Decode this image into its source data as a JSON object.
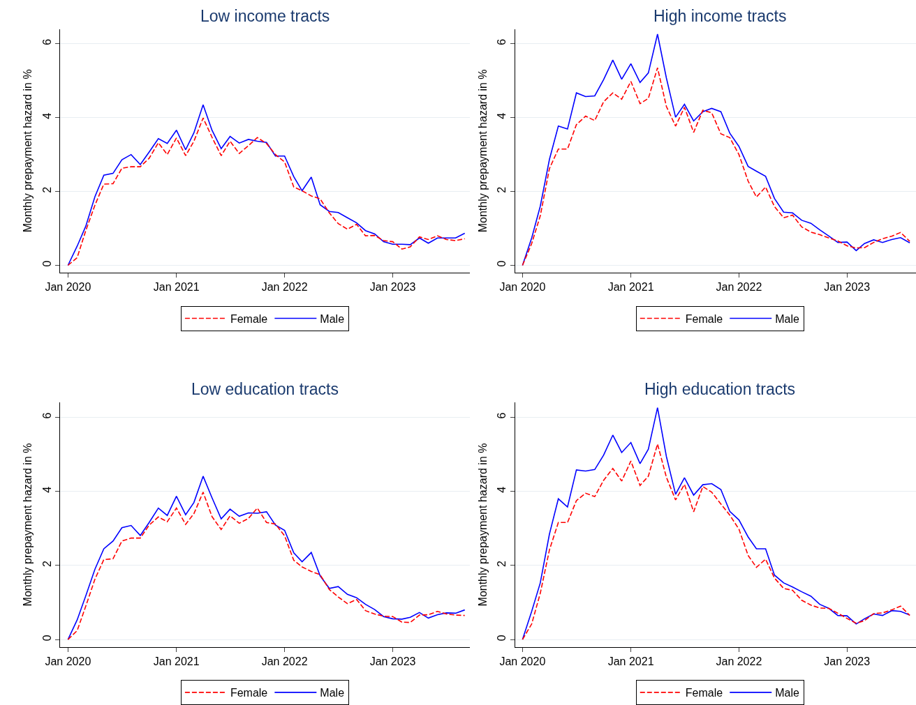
{
  "chart_data": [
    {
      "type": "line",
      "title": "Low income tracts",
      "ylabel": "Monthly prepayment hazard in %",
      "x": [
        "2020-01",
        "2020-02",
        "2020-03",
        "2020-04",
        "2020-05",
        "2020-06",
        "2020-07",
        "2020-08",
        "2020-09",
        "2020-10",
        "2020-11",
        "2020-12",
        "2021-01",
        "2021-02",
        "2021-03",
        "2021-04",
        "2021-05",
        "2021-06",
        "2021-07",
        "2021-08",
        "2021-09",
        "2021-10",
        "2021-11",
        "2021-12",
        "2022-01",
        "2022-02",
        "2022-03",
        "2022-04",
        "2022-05",
        "2022-06",
        "2022-07",
        "2022-08",
        "2022-09",
        "2022-10",
        "2022-11",
        "2022-12",
        "2023-01",
        "2023-02",
        "2023-03",
        "2023-04",
        "2023-05",
        "2023-06",
        "2023-07",
        "2023-08",
        "2023-09"
      ],
      "series": [
        {
          "name": "Female",
          "color": "#ff0000",
          "line_style": "dashed",
          "values": [
            0,
            0.21,
            0.94,
            1.63,
            2.2,
            2.21,
            2.63,
            2.67,
            2.67,
            2.9,
            3.32,
            3.0,
            3.45,
            2.97,
            3.36,
            3.99,
            3.47,
            2.97,
            3.36,
            3.03,
            3.24,
            3.46,
            3.3,
            3.0,
            2.8,
            2.12,
            2.02,
            1.88,
            1.8,
            1.42,
            1.13,
            0.98,
            1.11,
            0.8,
            0.81,
            0.67,
            0.64,
            0.44,
            0.5,
            0.77,
            0.7,
            0.8,
            0.7,
            0.67,
            0.72
          ]
        },
        {
          "name": "Male",
          "color": "#0000ff",
          "line_style": "solid",
          "values": [
            0,
            0.52,
            1.06,
            1.86,
            2.44,
            2.49,
            2.86,
            3.0,
            2.73,
            3.07,
            3.43,
            3.3,
            3.66,
            3.13,
            3.59,
            4.35,
            3.66,
            3.16,
            3.49,
            3.31,
            3.41,
            3.36,
            3.33,
            2.96,
            2.96,
            2.4,
            2.02,
            2.39,
            1.64,
            1.46,
            1.43,
            1.29,
            1.15,
            0.94,
            0.85,
            0.64,
            0.57,
            0.57,
            0.56,
            0.74,
            0.6,
            0.74,
            0.74,
            0.74,
            0.87
          ]
        }
      ],
      "xlim": [
        "2019-12-05",
        "2023-09-18"
      ],
      "ylim": [
        -0.2,
        6.4
      ],
      "xticks": [
        {
          "value": "2020-01",
          "label": "Jan 2020"
        },
        {
          "value": "2021-01",
          "label": "Jan 2021"
        },
        {
          "value": "2022-01",
          "label": "Jan 2022"
        },
        {
          "value": "2023-01",
          "label": "Jan 2023"
        }
      ],
      "yticks": [
        0,
        2,
        4,
        6
      ],
      "grid": "y",
      "legend": "bottom"
    },
    {
      "type": "line",
      "title": "High income tracts",
      "ylabel": "Monthly prepayment hazard in %",
      "x": [
        "2020-01",
        "2020-02",
        "2020-03",
        "2020-04",
        "2020-05",
        "2020-06",
        "2020-07",
        "2020-08",
        "2020-09",
        "2020-10",
        "2020-11",
        "2020-12",
        "2021-01",
        "2021-02",
        "2021-03",
        "2021-04",
        "2021-05",
        "2021-06",
        "2021-07",
        "2021-08",
        "2021-09",
        "2021-10",
        "2021-11",
        "2021-12",
        "2022-01",
        "2022-02",
        "2022-03",
        "2022-04",
        "2022-05",
        "2022-06",
        "2022-07",
        "2022-08",
        "2022-09",
        "2022-10",
        "2022-11",
        "2022-12",
        "2023-01",
        "2023-02",
        "2023-03",
        "2023-04",
        "2023-05",
        "2023-06",
        "2023-07",
        "2023-08"
      ],
      "series": [
        {
          "name": "Female",
          "color": "#ff0000",
          "line_style": "dashed",
          "values": [
            0,
            0.59,
            1.34,
            2.62,
            3.15,
            3.15,
            3.81,
            4.04,
            3.92,
            4.43,
            4.67,
            4.5,
            4.98,
            4.38,
            4.52,
            5.35,
            4.3,
            3.77,
            4.28,
            3.6,
            4.2,
            4.13,
            3.56,
            3.46,
            3.0,
            2.28,
            1.85,
            2.12,
            1.59,
            1.29,
            1.36,
            1.04,
            0.9,
            0.83,
            0.74,
            0.66,
            0.53,
            0.47,
            0.48,
            0.62,
            0.72,
            0.79,
            0.89,
            0.65
          ]
        },
        {
          "name": "Male",
          "color": "#0000ff",
          "line_style": "solid",
          "values": [
            0,
            0.74,
            1.6,
            2.87,
            3.77,
            3.69,
            4.67,
            4.57,
            4.59,
            5.03,
            5.56,
            5.04,
            5.46,
            4.95,
            5.21,
            6.26,
            5.07,
            4.01,
            4.36,
            3.91,
            4.16,
            4.25,
            4.16,
            3.58,
            3.22,
            2.68,
            2.55,
            2.41,
            1.81,
            1.44,
            1.42,
            1.22,
            1.14,
            0.96,
            0.79,
            0.62,
            0.63,
            0.4,
            0.59,
            0.69,
            0.62,
            0.7,
            0.75,
            0.61
          ]
        }
      ],
      "xlim": [
        "2019-12-07",
        "2023-08-22"
      ],
      "ylim": [
        -0.2,
        6.4
      ],
      "xticks": [
        {
          "value": "2020-01",
          "label": "Jan 2020"
        },
        {
          "value": "2021-01",
          "label": "Jan 2021"
        },
        {
          "value": "2022-01",
          "label": "Jan 2022"
        },
        {
          "value": "2023-01",
          "label": "Jan 2023"
        }
      ],
      "yticks": [
        0,
        2,
        4,
        6
      ],
      "grid": "y",
      "legend": "bottom"
    },
    {
      "type": "line",
      "title": "Low education tracts",
      "ylabel": "Monthly prepayment hazard in %",
      "x": [
        "2020-01",
        "2020-02",
        "2020-03",
        "2020-04",
        "2020-05",
        "2020-06",
        "2020-07",
        "2020-08",
        "2020-09",
        "2020-10",
        "2020-11",
        "2020-12",
        "2021-01",
        "2021-02",
        "2021-03",
        "2021-04",
        "2021-05",
        "2021-06",
        "2021-07",
        "2021-08",
        "2021-09",
        "2021-10",
        "2021-11",
        "2021-12",
        "2022-01",
        "2022-02",
        "2022-03",
        "2022-04",
        "2022-05",
        "2022-06",
        "2022-07",
        "2022-08",
        "2022-09",
        "2022-10",
        "2022-11",
        "2022-12",
        "2023-01",
        "2023-02",
        "2023-03",
        "2023-04",
        "2023-05",
        "2023-06",
        "2023-07",
        "2023-08",
        "2023-09"
      ],
      "series": [
        {
          "name": "Female",
          "color": "#ff0000",
          "line_style": "dashed",
          "values": [
            0,
            0.24,
            0.9,
            1.63,
            2.16,
            2.18,
            2.66,
            2.74,
            2.74,
            3.09,
            3.31,
            3.18,
            3.55,
            3.11,
            3.4,
            3.98,
            3.32,
            2.97,
            3.34,
            3.14,
            3.27,
            3.55,
            3.16,
            3.12,
            2.8,
            2.14,
            1.96,
            1.84,
            1.75,
            1.35,
            1.15,
            0.97,
            1.08,
            0.78,
            0.69,
            0.63,
            0.62,
            0.47,
            0.46,
            0.66,
            0.67,
            0.76,
            0.69,
            0.66,
            0.65
          ]
        },
        {
          "name": "Male",
          "color": "#0000ff",
          "line_style": "solid",
          "values": [
            0,
            0.53,
            1.18,
            1.9,
            2.45,
            2.66,
            3.02,
            3.08,
            2.81,
            3.16,
            3.55,
            3.35,
            3.87,
            3.37,
            3.7,
            4.41,
            3.83,
            3.26,
            3.52,
            3.33,
            3.42,
            3.41,
            3.45,
            3.09,
            2.95,
            2.34,
            2.1,
            2.35,
            1.72,
            1.38,
            1.43,
            1.22,
            1.13,
            0.95,
            0.81,
            0.62,
            0.56,
            0.55,
            0.6,
            0.73,
            0.58,
            0.67,
            0.72,
            0.71,
            0.8
          ]
        }
      ],
      "xlim": [
        "2019-12-05",
        "2023-09-18"
      ],
      "ylim": [
        -0.2,
        6.4
      ],
      "xticks": [
        {
          "value": "2020-01",
          "label": "Jan 2020"
        },
        {
          "value": "2021-01",
          "label": "Jan 2021"
        },
        {
          "value": "2022-01",
          "label": "Jan 2022"
        },
        {
          "value": "2023-01",
          "label": "Jan 2023"
        }
      ],
      "yticks": [
        0,
        2,
        4,
        6
      ],
      "grid": "y",
      "legend": "bottom"
    },
    {
      "type": "line",
      "title": "High education tracts",
      "ylabel": "Monthly prepayment hazard in %",
      "x": [
        "2020-01",
        "2020-02",
        "2020-03",
        "2020-04",
        "2020-05",
        "2020-06",
        "2020-07",
        "2020-08",
        "2020-09",
        "2020-10",
        "2020-11",
        "2020-12",
        "2021-01",
        "2021-02",
        "2021-03",
        "2021-04",
        "2021-05",
        "2021-06",
        "2021-07",
        "2021-08",
        "2021-09",
        "2021-10",
        "2021-11",
        "2021-12",
        "2022-01",
        "2022-02",
        "2022-03",
        "2022-04",
        "2022-05",
        "2022-06",
        "2022-07",
        "2022-08",
        "2022-09",
        "2022-10",
        "2022-11",
        "2022-12",
        "2023-01",
        "2023-02",
        "2023-03",
        "2023-04",
        "2023-05",
        "2023-06",
        "2023-07",
        "2023-08"
      ],
      "series": [
        {
          "name": "Female",
          "color": "#ff0000",
          "line_style": "dashed",
          "values": [
            0,
            0.42,
            1.25,
            2.42,
            3.16,
            3.16,
            3.75,
            3.95,
            3.86,
            4.3,
            4.62,
            4.28,
            4.82,
            4.16,
            4.41,
            5.28,
            4.38,
            3.77,
            4.19,
            3.45,
            4.13,
            3.98,
            3.66,
            3.36,
            2.98,
            2.27,
            1.95,
            2.17,
            1.66,
            1.38,
            1.33,
            1.06,
            0.93,
            0.85,
            0.84,
            0.71,
            0.57,
            0.44,
            0.51,
            0.7,
            0.72,
            0.8,
            0.9,
            0.65
          ]
        },
        {
          "name": "Male",
          "color": "#0000ff",
          "line_style": "solid",
          "values": [
            0,
            0.76,
            1.53,
            2.85,
            3.8,
            3.58,
            4.58,
            4.55,
            4.59,
            4.98,
            5.52,
            5.05,
            5.32,
            4.75,
            5.14,
            6.26,
            4.94,
            3.92,
            4.37,
            3.9,
            4.18,
            4.21,
            4.05,
            3.46,
            3.23,
            2.77,
            2.45,
            2.45,
            1.74,
            1.53,
            1.42,
            1.29,
            1.17,
            0.95,
            0.84,
            0.65,
            0.64,
            0.42,
            0.56,
            0.69,
            0.65,
            0.78,
            0.76,
            0.66
          ]
        }
      ],
      "xlim": [
        "2019-12-07",
        "2023-08-22"
      ],
      "ylim": [
        -0.2,
        6.4
      ],
      "xticks": [
        {
          "value": "2020-01",
          "label": "Jan 2020"
        },
        {
          "value": "2021-01",
          "label": "Jan 2021"
        },
        {
          "value": "2022-01",
          "label": "Jan 2022"
        },
        {
          "value": "2023-01",
          "label": "Jan 2023"
        }
      ],
      "yticks": [
        0,
        2,
        4,
        6
      ],
      "grid": "y",
      "legend": "bottom"
    }
  ]
}
